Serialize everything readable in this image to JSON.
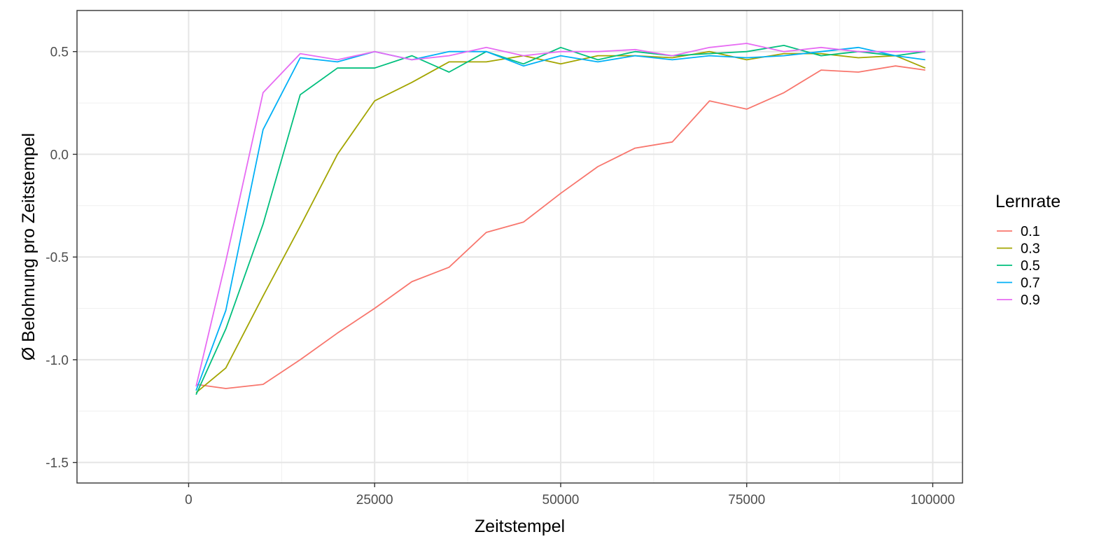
{
  "chart_data": {
    "type": "line",
    "title": "",
    "xlabel": "Zeitstempel",
    "ylabel": "Ø Belohnung pro Zeitstempel",
    "xlim": [
      -15000,
      104000
    ],
    "ylim": [
      -1.6,
      0.7
    ],
    "x_ticks": [
      0,
      25000,
      50000,
      75000,
      100000
    ],
    "x_tick_labels": [
      "0",
      "25000",
      "50000",
      "75000",
      "100000"
    ],
    "y_ticks": [
      -1.5,
      -1.0,
      -0.5,
      0.0,
      0.5
    ],
    "y_tick_labels": [
      "-1.5",
      "-1.0",
      "-0.5",
      "0.0",
      "0.5"
    ],
    "grid": true,
    "legend_position": "right",
    "legend_title": "Lernrate",
    "series": [
      {
        "name": "0.1",
        "color": "#F8766D",
        "x": [
          1000,
          5000,
          10000,
          15000,
          20000,
          25000,
          30000,
          35000,
          40000,
          45000,
          50000,
          55000,
          60000,
          65000,
          70000,
          75000,
          80000,
          85000,
          90000,
          95000,
          99000
        ],
        "y": [
          -1.12,
          -1.14,
          -1.12,
          -1.0,
          -0.87,
          -0.75,
          -0.62,
          -0.55,
          -0.38,
          -0.33,
          -0.19,
          -0.06,
          0.03,
          0.06,
          0.26,
          0.22,
          0.3,
          0.41,
          0.4,
          0.43,
          0.41
        ]
      },
      {
        "name": "0.3",
        "color": "#A3A500",
        "x": [
          1000,
          5000,
          10000,
          15000,
          20000,
          25000,
          30000,
          35000,
          40000,
          45000,
          50000,
          55000,
          60000,
          65000,
          70000,
          75000,
          80000,
          85000,
          90000,
          95000,
          99000
        ],
        "y": [
          -1.16,
          -1.04,
          -0.69,
          -0.35,
          0.0,
          0.26,
          0.35,
          0.45,
          0.45,
          0.48,
          0.44,
          0.48,
          0.48,
          0.47,
          0.5,
          0.46,
          0.49,
          0.49,
          0.47,
          0.48,
          0.42
        ]
      },
      {
        "name": "0.5",
        "color": "#00BF7D",
        "x": [
          1000,
          5000,
          10000,
          15000,
          20000,
          25000,
          30000,
          35000,
          40000,
          45000,
          50000,
          55000,
          60000,
          65000,
          70000,
          75000,
          80000,
          85000,
          90000,
          95000,
          99000
        ],
        "y": [
          -1.17,
          -0.85,
          -0.34,
          0.29,
          0.42,
          0.42,
          0.48,
          0.4,
          0.5,
          0.44,
          0.52,
          0.46,
          0.5,
          0.48,
          0.49,
          0.5,
          0.53,
          0.48,
          0.5,
          0.48,
          0.5
        ]
      },
      {
        "name": "0.7",
        "color": "#00B0F6",
        "x": [
          1000,
          5000,
          10000,
          15000,
          20000,
          25000,
          30000,
          35000,
          40000,
          45000,
          50000,
          55000,
          60000,
          65000,
          70000,
          75000,
          80000,
          85000,
          90000,
          95000,
          99000
        ],
        "y": [
          -1.15,
          -0.76,
          0.12,
          0.47,
          0.45,
          0.5,
          0.46,
          0.5,
          0.5,
          0.43,
          0.48,
          0.45,
          0.48,
          0.46,
          0.48,
          0.47,
          0.48,
          0.5,
          0.52,
          0.48,
          0.46
        ]
      },
      {
        "name": "0.9",
        "color": "#E76BF3",
        "x": [
          1000,
          5000,
          10000,
          15000,
          20000,
          25000,
          30000,
          35000,
          40000,
          45000,
          50000,
          55000,
          60000,
          65000,
          70000,
          75000,
          80000,
          85000,
          90000,
          95000,
          99000
        ],
        "y": [
          -1.13,
          -0.52,
          0.3,
          0.49,
          0.46,
          0.5,
          0.46,
          0.48,
          0.52,
          0.48,
          0.5,
          0.5,
          0.51,
          0.48,
          0.52,
          0.54,
          0.5,
          0.52,
          0.5,
          0.5,
          0.5
        ]
      }
    ]
  }
}
